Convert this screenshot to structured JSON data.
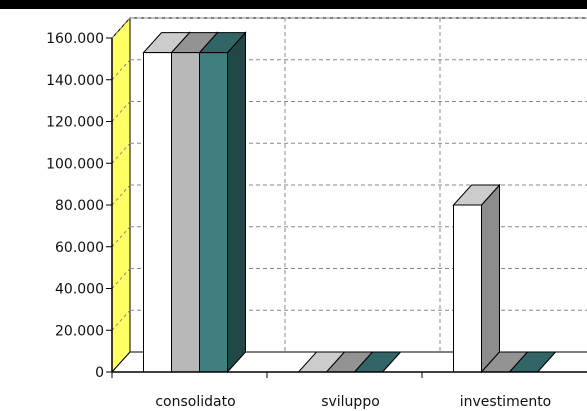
{
  "chart_data": {
    "type": "bar",
    "title": "",
    "xlabel": "",
    "ylabel": "",
    "categories": [
      "consolidato",
      "sviluppo",
      "investimento"
    ],
    "series": [
      {
        "values": [
          153000,
          0,
          80000
        ],
        "color": "#ffffff"
      },
      {
        "values": [
          153000,
          0,
          0
        ],
        "color": "#b8b8b8"
      },
      {
        "values": [
          153000,
          0,
          0
        ],
        "color": "#3f7f7f"
      }
    ],
    "y_ticks": [
      "0",
      "20.000",
      "40.000",
      "60.000",
      "80.000",
      "100.000",
      "120.000",
      "140.000",
      "160.000"
    ],
    "ylim": [
      0,
      160000
    ],
    "grid": true,
    "wall_color": "#ffff66",
    "header_color": "#000000"
  }
}
